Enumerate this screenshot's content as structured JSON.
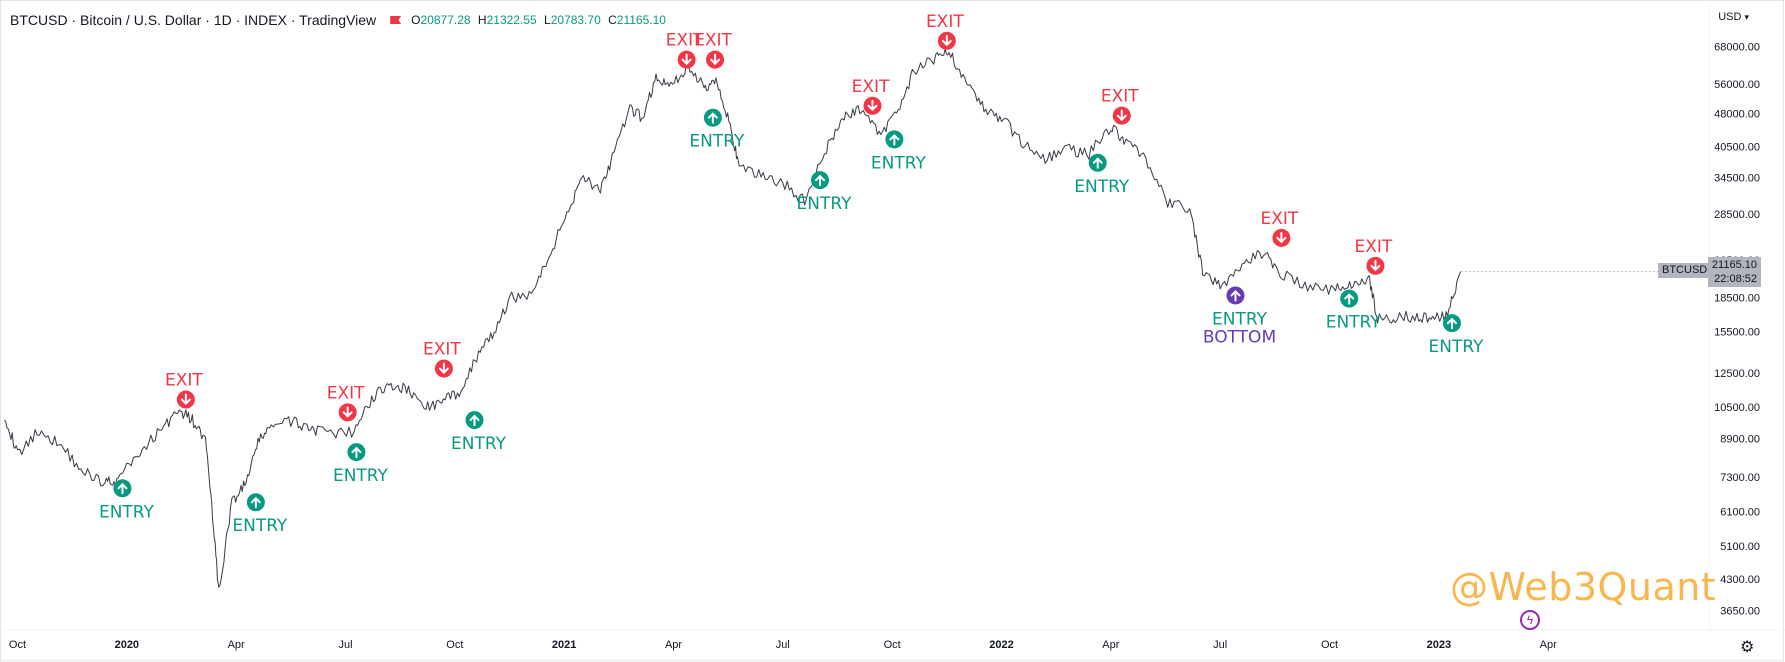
{
  "header": {
    "title": "BTCUSD · Bitcoin / U.S. Dollar · 1D · INDEX · TradingView",
    "ohlc": {
      "o_label": "O",
      "o": "20877.28",
      "h_label": "H",
      "h": "21322.55",
      "l_label": "L",
      "l": "20783.70",
      "c_label": "C",
      "c": "21165.10"
    }
  },
  "currency": "USD",
  "last_price": {
    "symbol": "BTCUSD",
    "value": "21165.10",
    "countdown": "22:08:52"
  },
  "watermark": "@Web3Quant",
  "colors": {
    "entry": "#089981",
    "exit": "#f23645",
    "bottom": "#673ab7",
    "price_line": "#363a45",
    "grid_text": "#131722"
  },
  "chart_data": {
    "type": "line",
    "title": "BTCUSD · Bitcoin / U.S. Dollar · 1D · INDEX · TradingView",
    "yscale": "log",
    "ylim": [
      3300,
      78000
    ],
    "y_ticks": [
      "68000.00",
      "56000.00",
      "48000.00",
      "40500.00",
      "34500.00",
      "28500.00",
      "22500.00",
      "18500.00",
      "15500.00",
      "12500.00",
      "10500.00",
      "8900.00",
      "7300.00",
      "6100.00",
      "5100.00",
      "4300.00",
      "3650.00"
    ],
    "x_ticks": [
      {
        "label": "Oct",
        "t": 2019.75,
        "bold": false
      },
      {
        "label": "2020",
        "t": 2020.0,
        "bold": true
      },
      {
        "label": "Apr",
        "t": 2020.25,
        "bold": false
      },
      {
        "label": "Jul",
        "t": 2020.5,
        "bold": false
      },
      {
        "label": "Oct",
        "t": 2020.75,
        "bold": false
      },
      {
        "label": "2021",
        "t": 2021.0,
        "bold": true
      },
      {
        "label": "Apr",
        "t": 2021.25,
        "bold": false
      },
      {
        "label": "Jul",
        "t": 2021.5,
        "bold": false
      },
      {
        "label": "Oct",
        "t": 2021.75,
        "bold": false
      },
      {
        "label": "2022",
        "t": 2022.0,
        "bold": true
      },
      {
        "label": "Apr",
        "t": 2022.25,
        "bold": false
      },
      {
        "label": "Jul",
        "t": 2022.5,
        "bold": false
      },
      {
        "label": "Oct",
        "t": 2022.75,
        "bold": false
      },
      {
        "label": "2023",
        "t": 2023.0,
        "bold": true
      },
      {
        "label": "Apr",
        "t": 2023.25,
        "bold": false
      }
    ],
    "xlim": [
      2019.71,
      2023.62
    ],
    "series": [
      {
        "points": [
          [
            2019.72,
            10100
          ],
          [
            2019.75,
            8200
          ],
          [
            2019.8,
            9300
          ],
          [
            2019.85,
            8600
          ],
          [
            2019.9,
            7500
          ],
          [
            2019.95,
            7100
          ],
          [
            2019.98,
            7200
          ],
          [
            2020.03,
            8300
          ],
          [
            2020.08,
            9400
          ],
          [
            2020.12,
            10300
          ],
          [
            2020.15,
            9800
          ],
          [
            2020.18,
            8800
          ],
          [
            2020.2,
            5400
          ],
          [
            2020.21,
            4000
          ],
          [
            2020.24,
            6400
          ],
          [
            2020.27,
            7000
          ],
          [
            2020.3,
            8700
          ],
          [
            2020.33,
            9600
          ],
          [
            2020.38,
            9700
          ],
          [
            2020.42,
            9400
          ],
          [
            2020.46,
            9100
          ],
          [
            2020.52,
            9200
          ],
          [
            2020.56,
            11000
          ],
          [
            2020.6,
            11800
          ],
          [
            2020.64,
            11500
          ],
          [
            2020.68,
            10500
          ],
          [
            2020.72,
            10700
          ],
          [
            2020.76,
            11400
          ],
          [
            2020.8,
            13500
          ],
          [
            2020.84,
            15500
          ],
          [
            2020.88,
            18500
          ],
          [
            2020.93,
            19000
          ],
          [
            2020.97,
            23500
          ],
          [
            2021.01,
            29000
          ],
          [
            2021.04,
            35000
          ],
          [
            2021.08,
            32000
          ],
          [
            2021.11,
            38000
          ],
          [
            2021.15,
            49000
          ],
          [
            2021.18,
            47000
          ],
          [
            2021.21,
            58000
          ],
          [
            2021.24,
            55000
          ],
          [
            2021.28,
            61000
          ],
          [
            2021.32,
            55000
          ],
          [
            2021.35,
            57000
          ],
          [
            2021.38,
            45000
          ],
          [
            2021.4,
            36000
          ],
          [
            2021.45,
            35000
          ],
          [
            2021.5,
            33500
          ],
          [
            2021.55,
            30500
          ],
          [
            2021.6,
            40000
          ],
          [
            2021.64,
            47000
          ],
          [
            2021.68,
            49500
          ],
          [
            2021.72,
            43000
          ],
          [
            2021.76,
            48000
          ],
          [
            2021.8,
            60000
          ],
          [
            2021.85,
            64000
          ],
          [
            2021.88,
            66000
          ],
          [
            2021.92,
            57000
          ],
          [
            2021.96,
            49000
          ],
          [
            2022.0,
            47000
          ],
          [
            2022.05,
            41000
          ],
          [
            2022.1,
            38000
          ],
          [
            2022.15,
            40000
          ],
          [
            2022.2,
            39000
          ],
          [
            2022.25,
            45000
          ],
          [
            2022.28,
            42000
          ],
          [
            2022.33,
            38000
          ],
          [
            2022.38,
            30000
          ],
          [
            2022.43,
            29500
          ],
          [
            2022.46,
            21000
          ],
          [
            2022.5,
            19500
          ],
          [
            2022.55,
            22000
          ],
          [
            2022.6,
            23500
          ],
          [
            2022.64,
            21000
          ],
          [
            2022.7,
            19500
          ],
          [
            2022.76,
            19300
          ],
          [
            2022.8,
            19800
          ],
          [
            2022.84,
            20500
          ],
          [
            2022.86,
            16500
          ],
          [
            2022.9,
            16700
          ],
          [
            2022.95,
            16800
          ],
          [
            2022.99,
            16600
          ],
          [
            2023.02,
            17200
          ],
          [
            2023.05,
            21165
          ]
        ]
      }
    ]
  },
  "signals": [
    {
      "kind": "entry",
      "label": "ENTRY",
      "t": 2019.99,
      "p": 6880
    },
    {
      "kind": "exit",
      "label": "EXIT",
      "t": 2020.135,
      "p": 10900
    },
    {
      "kind": "entry",
      "label": "ENTRY",
      "t": 2020.295,
      "p": 6400
    },
    {
      "kind": "exit",
      "label": "EXIT",
      "t": 2020.505,
      "p": 10200
    },
    {
      "kind": "entry",
      "label": "ENTRY",
      "t": 2020.525,
      "p": 8300
    },
    {
      "kind": "exit",
      "label": "EXIT",
      "t": 2020.725,
      "p": 12800
    },
    {
      "kind": "entry",
      "label": "ENTRY",
      "t": 2020.795,
      "p": 9800
    },
    {
      "kind": "exit",
      "label": "EXIT",
      "t": 2021.28,
      "p": 63500
    },
    {
      "kind": "exit",
      "label": "EXIT",
      "t": 2021.345,
      "p": 63500
    },
    {
      "kind": "entry",
      "label": "ENTRY",
      "t": 2021.34,
      "p": 47000
    },
    {
      "kind": "entry",
      "label": "ENTRY",
      "t": 2021.585,
      "p": 34000
    },
    {
      "kind": "exit",
      "label": "EXIT",
      "t": 2021.705,
      "p": 50000
    },
    {
      "kind": "entry",
      "label": "ENTRY",
      "t": 2021.755,
      "p": 42000
    },
    {
      "kind": "exit",
      "label": "EXIT",
      "t": 2021.875,
      "p": 70000
    },
    {
      "kind": "exit",
      "label": "EXIT",
      "t": 2022.275,
      "p": 47500
    },
    {
      "kind": "entry",
      "label": "ENTRY",
      "t": 2022.22,
      "p": 37200
    },
    {
      "kind": "exit",
      "label": "EXIT",
      "t": 2022.64,
      "p": 25200
    },
    {
      "kind": "bottom",
      "label": "ENTRY",
      "label2": "BOTTOM",
      "t": 2022.535,
      "p": 18700
    },
    {
      "kind": "entry",
      "label": "ENTRY",
      "t": 2022.795,
      "p": 18400
    },
    {
      "kind": "exit",
      "label": "EXIT",
      "t": 2022.855,
      "p": 21800
    },
    {
      "kind": "entry",
      "label": "ENTRY",
      "t": 2023.03,
      "p": 16200
    }
  ]
}
